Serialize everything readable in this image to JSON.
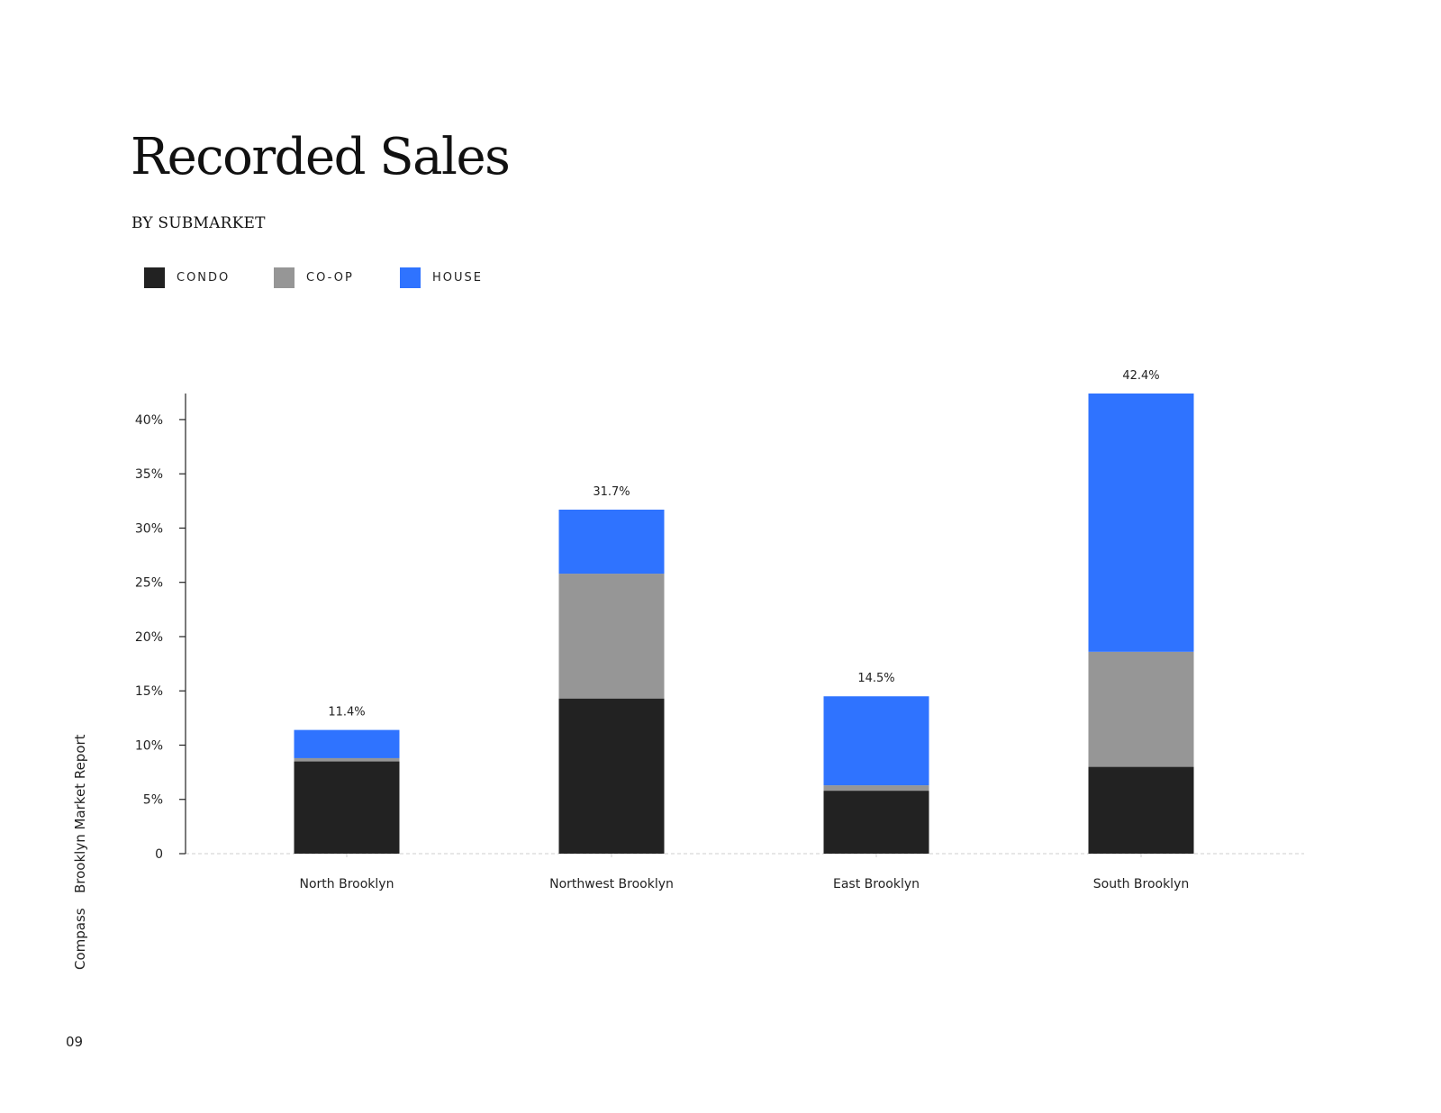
{
  "header": {
    "title": "Recorded Sales",
    "subtitle": "BY SUBMARKET"
  },
  "legend": [
    {
      "label": "CONDO",
      "color": "#222222"
    },
    {
      "label": "CO-OP",
      "color": "#969696"
    },
    {
      "label": "HOUSE",
      "color": "#2f73ff"
    }
  ],
  "sidebar": {
    "brand": "Compass",
    "report": "Brooklyn Market Report"
  },
  "page_number": "09",
  "chart_data": {
    "type": "bar",
    "stacked": true,
    "categories": [
      "North Brooklyn",
      "Northwest Brooklyn",
      "East Brooklyn",
      "South Brooklyn"
    ],
    "series": [
      {
        "name": "CONDO",
        "color": "#222222",
        "values": [
          8.5,
          14.3,
          5.8,
          8.0
        ]
      },
      {
        "name": "CO-OP",
        "color": "#969696",
        "values": [
          0.3,
          11.5,
          0.5,
          10.6
        ]
      },
      {
        "name": "HOUSE",
        "color": "#2f73ff",
        "values": [
          2.6,
          5.9,
          8.2,
          23.8
        ]
      }
    ],
    "totals": [
      "11.4%",
      "31.7%",
      "14.5%",
      "42.4%"
    ],
    "ylim": [
      0,
      42.4
    ],
    "yticks": [
      0,
      5,
      10,
      15,
      20,
      25,
      30,
      35,
      40
    ],
    "ytick_labels": [
      "0",
      "5%",
      "10%",
      "15%",
      "20%",
      "25%",
      "30%",
      "35%",
      "40%"
    ],
    "xlabel": "",
    "ylabel": "",
    "grid": false,
    "legend_position": "top-left"
  }
}
